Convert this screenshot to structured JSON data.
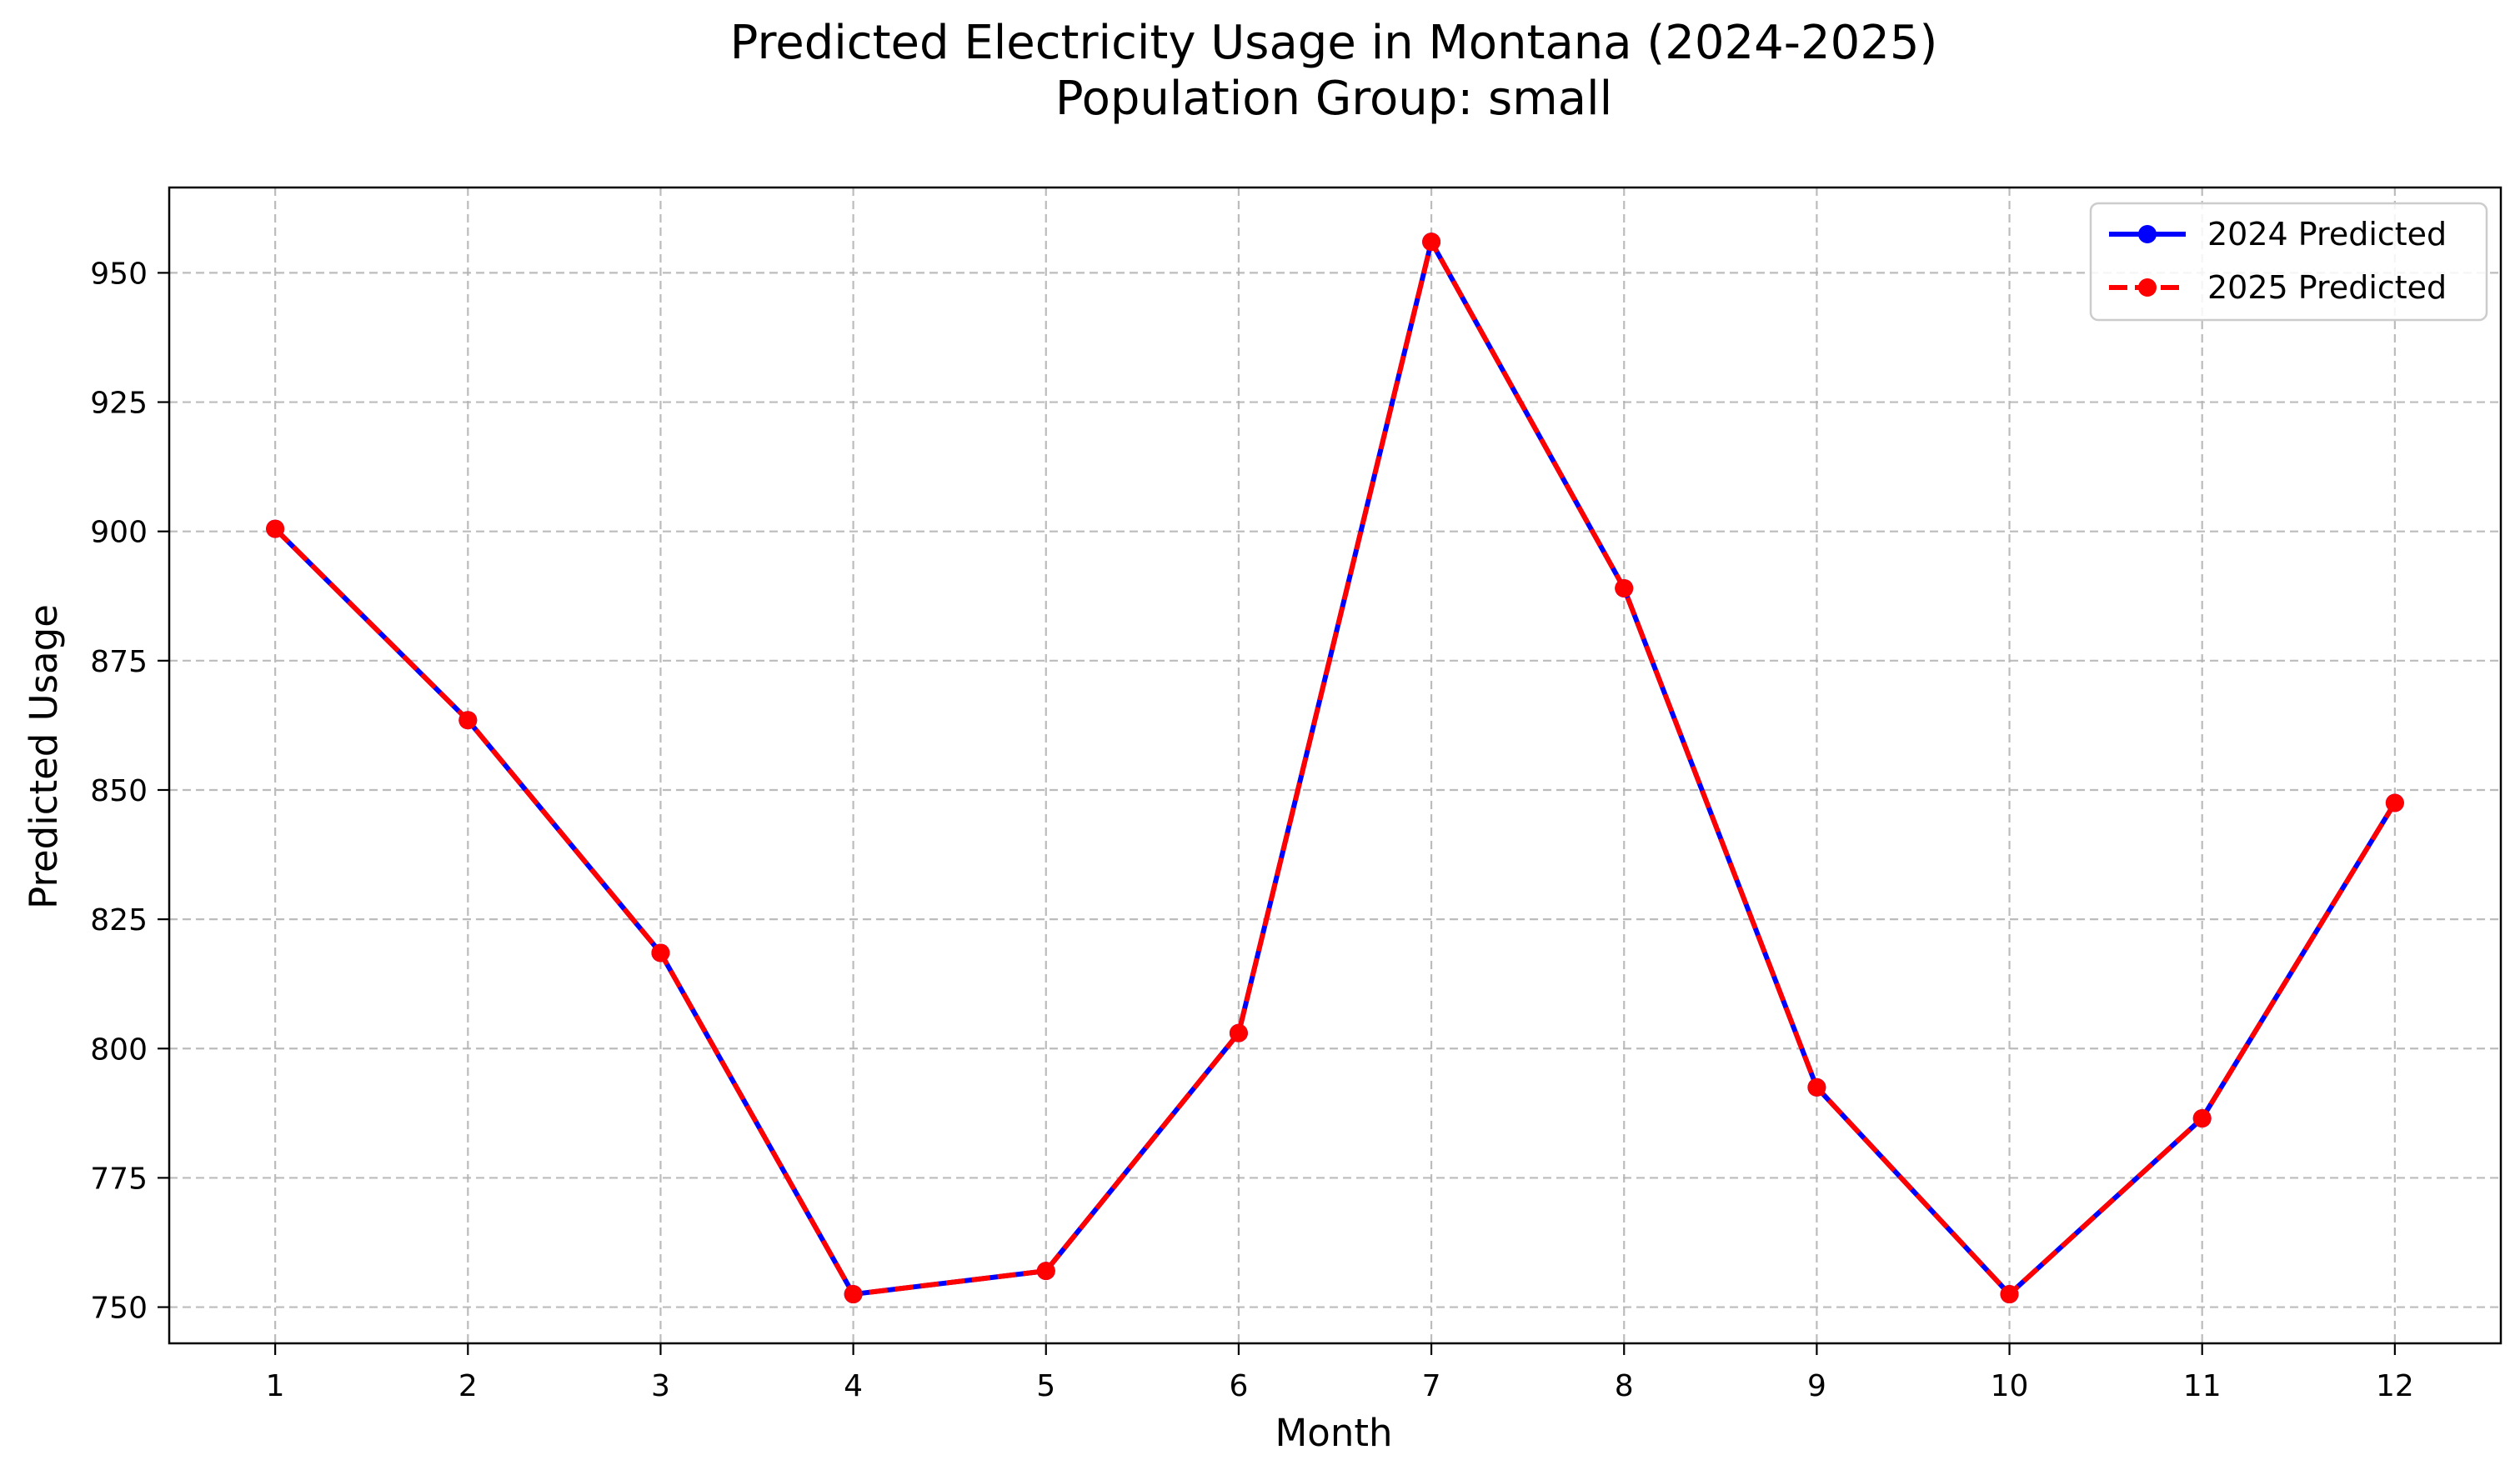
{
  "chart_data": {
    "type": "line",
    "title": "Predicted Electricity Usage in Montana (2024-2025)",
    "subtitle": "Population Group: small",
    "xlabel": "Month",
    "ylabel": "Predicted Usage",
    "x": [
      1,
      2,
      3,
      4,
      5,
      6,
      7,
      8,
      9,
      10,
      11,
      12
    ],
    "x_ticks": [
      "1",
      "2",
      "3",
      "4",
      "5",
      "6",
      "7",
      "8",
      "9",
      "10",
      "11",
      "12"
    ],
    "xlim": [
      0.45,
      12.55
    ],
    "ylim": [
      743,
      966.5
    ],
    "y_ticks": [
      "750",
      "775",
      "800",
      "825",
      "850",
      "875",
      "900",
      "925",
      "950"
    ],
    "grid": true,
    "legend_position": "top-right",
    "series": [
      {
        "name": "2024 Predicted",
        "color": "#0000ff",
        "line_style": "solid",
        "marker": "circle",
        "values": [
          900.5,
          863.5,
          818.5,
          752.5,
          757,
          803,
          956,
          889,
          792.5,
          752.5,
          786.5,
          847.5
        ]
      },
      {
        "name": "2025 Predicted",
        "color": "#ff0000",
        "line_style": "dashed",
        "marker": "circle",
        "values": [
          900.5,
          863.5,
          818.5,
          752.5,
          757,
          803,
          956,
          889,
          792.5,
          752.5,
          786.5,
          847.5
        ]
      }
    ]
  }
}
